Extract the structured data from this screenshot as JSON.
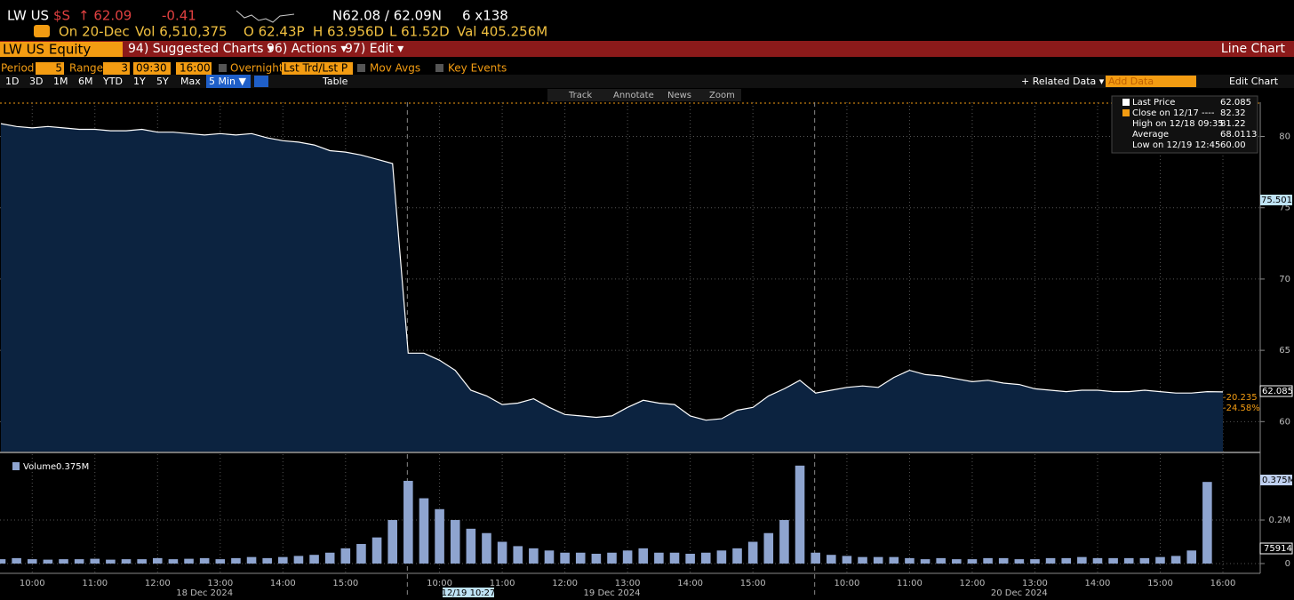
{
  "header": {
    "ticker": "LW US",
    "currency": "$S",
    "last": "↑ 62.09",
    "change": "-0.41",
    "bid_ask": "N62.08 / 62.09N",
    "size": "6 x138",
    "date": "On 20-Dec",
    "volume": "Vol 6,510,375",
    "open": "O 62.43P",
    "high": "H 63.956D",
    "low": "L 61.52D",
    "value": "Val 405.256M"
  },
  "menu": {
    "security": "LW US Equity",
    "items": [
      "94) Suggested Charts ▾",
      "96) Actions ▾",
      "97) Edit ▾"
    ],
    "chart_type": "Line Chart"
  },
  "settings": {
    "period_label": "Period",
    "period": "5",
    "range_label": "Range",
    "range": "3",
    "start": "09:30",
    "end": "16:00",
    "overnight": "Overnight",
    "price_mode": "Lst Trd/Lst P",
    "mov_avgs": "Mov Avgs",
    "key_events": "Key Events"
  },
  "buttons": {
    "ranges": [
      "1D",
      "3D",
      "1M",
      "6M",
      "YTD",
      "1Y",
      "5Y",
      "Max"
    ],
    "interval": "5 Min ▼",
    "table": "Table",
    "related": "+ Related Data ▾",
    "add_data": "Add Data",
    "edit_chart": "Edit Chart"
  },
  "toolbar": [
    "Track",
    "Annotate",
    "News",
    "Zoom"
  ],
  "chart_data": [
    {
      "type": "line",
      "categories": [
        null,
        null,
        "10:00",
        null,
        null,
        null,
        "11:00",
        null,
        null,
        null,
        "12:00",
        null,
        null,
        null,
        "13:00",
        null,
        null,
        null,
        "14:00",
        null,
        null,
        null,
        "15:00",
        null,
        null,
        null,
        null,
        null,
        "10:00",
        null,
        null,
        null,
        "11:00",
        null,
        null,
        null,
        "12:00",
        null,
        null,
        null,
        "13:00",
        null,
        null,
        null,
        "14:00",
        null,
        null,
        null,
        "15:00",
        null,
        null,
        null,
        null,
        null,
        "10:00",
        null,
        null,
        null,
        "11:00",
        null,
        null,
        null,
        "12:00",
        null,
        null,
        null,
        "13:00",
        null,
        null,
        null,
        "14:00",
        null,
        null,
        null,
        "15:00",
        null,
        null,
        null,
        "16:00"
      ],
      "date_labels": [
        "18 Dec 2024",
        "19 Dec 2024",
        "20 Dec 2024"
      ],
      "cursor_label": "12/19 10:27",
      "series": [
        {
          "name": "Last Price",
          "color": "#ffffff",
          "values": [
            80.9,
            80.7,
            80.6,
            80.7,
            80.6,
            80.5,
            80.5,
            80.4,
            80.4,
            80.5,
            80.3,
            80.3,
            80.2,
            80.1,
            80.2,
            80.1,
            80.2,
            79.9,
            79.7,
            79.6,
            79.4,
            79.0,
            78.9,
            78.7,
            78.4,
            78.1,
            64.8,
            64.8,
            64.3,
            63.6,
            62.2,
            61.8,
            61.2,
            61.3,
            61.6,
            61.0,
            60.5,
            60.4,
            60.3,
            60.4,
            61.0,
            61.5,
            61.3,
            61.2,
            60.4,
            60.1,
            60.2,
            60.8,
            61.0,
            61.8,
            62.3,
            62.9,
            62.0,
            62.2,
            62.4,
            62.5,
            62.4,
            63.1,
            63.6,
            63.3,
            63.2,
            63.0,
            62.8,
            62.9,
            62.7,
            62.6,
            62.3,
            62.2,
            62.1,
            62.2,
            62.2,
            62.1,
            62.1,
            62.2,
            62.1,
            62.0,
            62.0,
            62.1,
            62.085
          ]
        }
      ],
      "fill": "#0c2340",
      "ylim": [
        57.9,
        82.4
      ],
      "yticks": [
        60,
        65,
        70,
        75,
        80
      ],
      "grid": true,
      "legend": [
        {
          "label": "Close on 12/17 ----",
          "value": "82.32"
        },
        {
          "label": "High on 12/18 09:35",
          "value": "81.22"
        },
        {
          "label": "Average",
          "value": "68.0113"
        },
        {
          "label": "Low on 12/19 12:45",
          "value": "60.00"
        }
      ],
      "last_value": "62.085",
      "annotations": [
        "75.5015",
        "62.085",
        "-20.235",
        "-24.58%"
      ]
    },
    {
      "type": "bar",
      "series": [
        {
          "name": "Volume",
          "color": "#8ea4cf",
          "values": [
            0.02,
            0.025,
            0.02,
            0.018,
            0.02,
            0.02,
            0.022,
            0.018,
            0.02,
            0.02,
            0.025,
            0.02,
            0.022,
            0.025,
            0.02,
            0.025,
            0.03,
            0.025,
            0.03,
            0.035,
            0.04,
            0.05,
            0.07,
            0.09,
            0.12,
            0.2,
            0.38,
            0.3,
            0.25,
            0.2,
            0.16,
            0.14,
            0.1,
            0.08,
            0.07,
            0.06,
            0.05,
            0.05,
            0.045,
            0.05,
            0.06,
            0.07,
            0.05,
            0.05,
            0.045,
            0.05,
            0.06,
            0.07,
            0.1,
            0.14,
            0.2,
            0.45,
            0.05,
            0.04,
            0.035,
            0.03,
            0.03,
            0.03,
            0.025,
            0.02,
            0.025,
            0.02,
            0.02,
            0.025,
            0.025,
            0.02,
            0.02,
            0.025,
            0.025,
            0.03,
            0.025,
            0.025,
            0.025,
            0.025,
            0.03,
            0.035,
            0.06,
            0.375,
            null
          ]
        }
      ],
      "legend_value": "0.375M",
      "average_label": "75914",
      "ylim": [
        0,
        0.486
      ],
      "yticks": [
        0,
        {
          "value": 0.2,
          "label": "0.2M"
        }
      ],
      "grid": true
    }
  ]
}
